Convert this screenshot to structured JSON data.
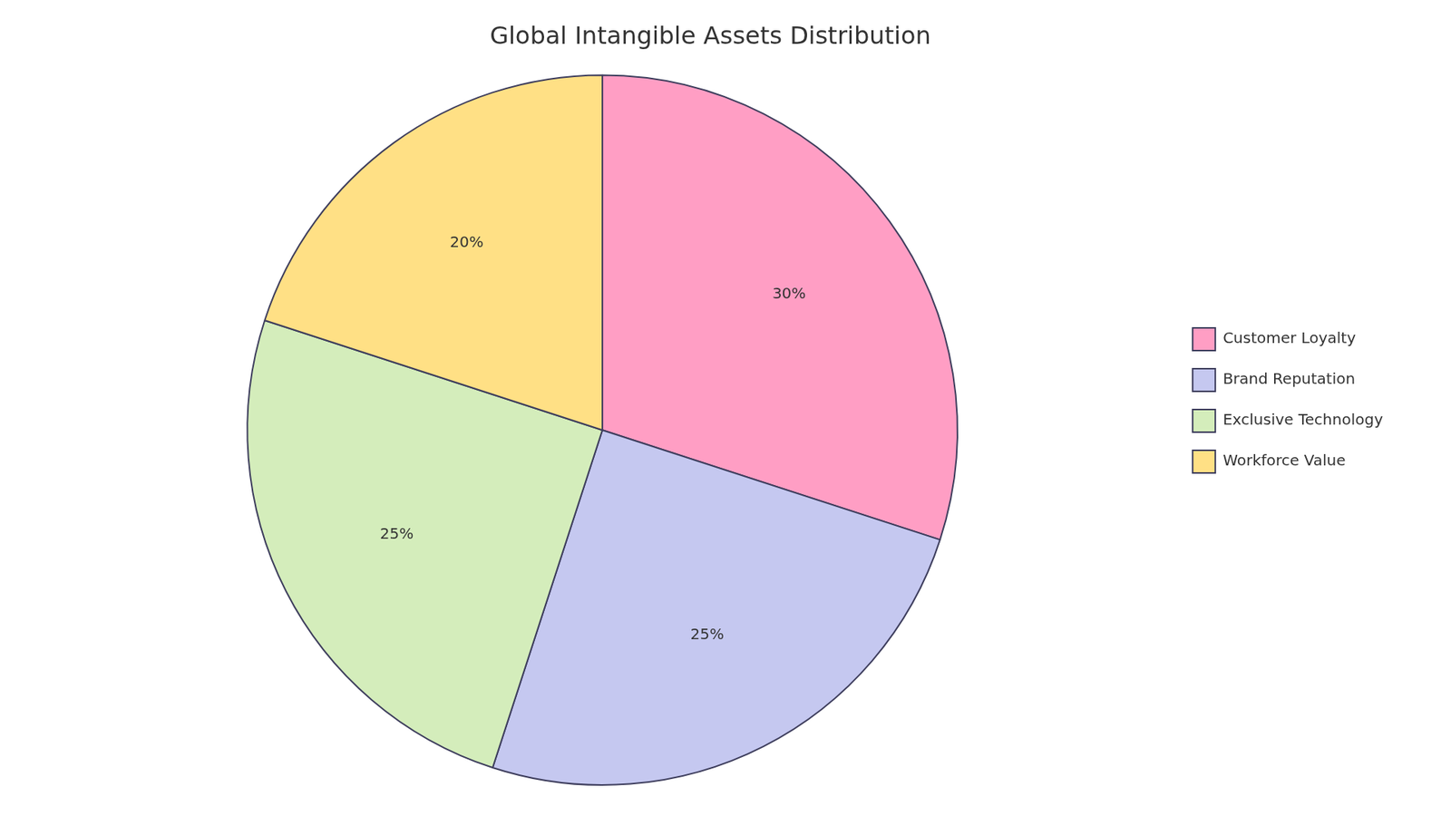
{
  "chart_data": {
    "type": "pie",
    "title": "Global Intangible Assets Distribution",
    "categories": [
      "Customer Loyalty",
      "Brand Reputation",
      "Exclusive Technology",
      "Workforce Value"
    ],
    "values": [
      30,
      25,
      25,
      20
    ],
    "value_labels": [
      "30%",
      "25%",
      "25%",
      "20%"
    ],
    "colors": [
      "#FF9EC4",
      "#C5C8F0",
      "#D4EDBB",
      "#FFE085"
    ],
    "data_labels": true,
    "legend": "right"
  }
}
